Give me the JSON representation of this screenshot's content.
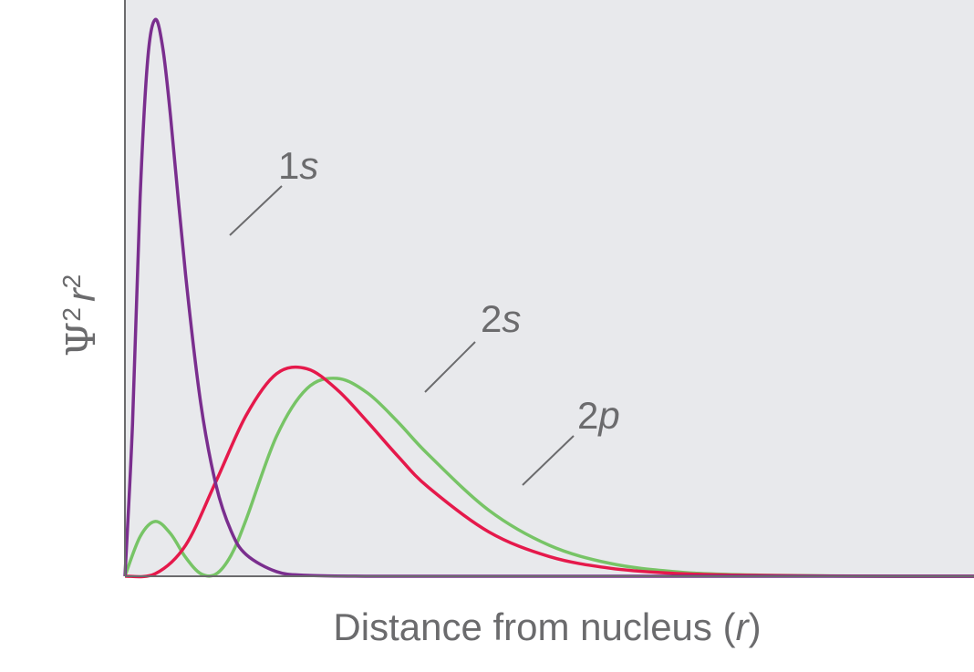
{
  "chart_data": {
    "type": "line",
    "title": "",
    "xlabel_main": "Distance from nucleus (",
    "xlabel_var": "r",
    "xlabel_close": ")",
    "ylabel_psi": "Ψ",
    "ylabel_r": "r",
    "ylabel_exp": "2",
    "xlim": [
      0,
      28
    ],
    "ylim": [
      0,
      0.56
    ],
    "grid": false,
    "colors": {
      "background": "#e8e9ec",
      "axis": "#6b6b6d",
      "1s": "#7a2e8e",
      "2s": "#77c466",
      "2p": "#e5194b",
      "leader": "#6b6b6d"
    },
    "series": [
      {
        "name": "1s",
        "x": [
          0,
          0.25,
          0.5,
          0.75,
          1,
          1.25,
          1.5,
          2,
          2.5,
          3,
          3.5,
          4,
          5,
          6,
          8,
          10,
          15,
          20,
          28
        ],
        "y": [
          0,
          0.148,
          0.368,
          0.502,
          0.541,
          0.513,
          0.448,
          0.293,
          0.168,
          0.089,
          0.044,
          0.021,
          0.0045,
          0.0009,
          3e-05,
          0,
          0,
          0,
          0
        ]
      },
      {
        "name": "2s",
        "x": [
          0,
          0.5,
          1,
          1.5,
          2,
          2.5,
          3,
          3.5,
          4,
          5,
          6,
          7,
          8,
          9,
          10,
          12,
          14,
          16,
          18,
          20,
          24,
          28
        ],
        "y": [
          0,
          0.0385,
          0.0533,
          0.0415,
          0.0184,
          0.0025,
          0.0021,
          0.0204,
          0.0554,
          0.1361,
          0.1823,
          0.1923,
          0.1781,
          0.15,
          0.1184,
          0.0641,
          0.03,
          0.0125,
          0.0048,
          0.0017,
          0.0002,
          0
        ]
      },
      {
        "name": "2p",
        "x": [
          0,
          1,
          2,
          3,
          4,
          5,
          6,
          7,
          8,
          9,
          10,
          12,
          14,
          16,
          18,
          20,
          24,
          28
        ],
        "y": [
          0,
          0.0025,
          0.0301,
          0.092,
          0.1565,
          0.1968,
          0.2016,
          0.1813,
          0.15,
          0.1167,
          0.0866,
          0.0431,
          0.0191,
          0.0078,
          0.003,
          0.0011,
          0.0001,
          0
        ]
      }
    ],
    "labels": {
      "s1": {
        "num": "1",
        "letter": "s"
      },
      "s2": {
        "num": "2",
        "letter": "s"
      },
      "p2": {
        "num": "2",
        "letter": "p"
      }
    }
  }
}
